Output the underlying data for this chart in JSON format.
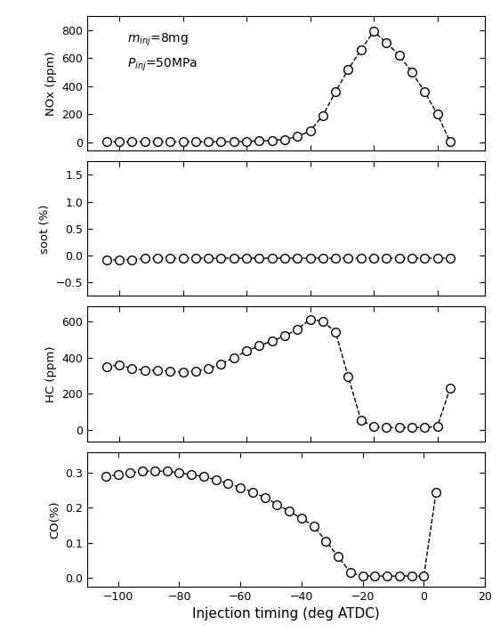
{
  "x_label": "Injection timing (deg ATDC)",
  "nox_x": [
    -104,
    -100,
    -96,
    -92,
    -88,
    -84,
    -80,
    -76,
    -72,
    -68,
    -64,
    -60,
    -56,
    -52,
    -48,
    -44,
    -40,
    -36,
    -32,
    -28,
    -24,
    -20,
    -16,
    -12,
    -8,
    -4,
    0,
    4
  ],
  "nox_y": [
    3,
    3,
    3,
    3,
    3,
    3,
    3,
    3,
    3,
    3,
    3,
    5,
    8,
    12,
    20,
    40,
    80,
    190,
    360,
    520,
    660,
    790,
    710,
    620,
    500,
    360,
    200,
    5
  ],
  "soot_x": [
    -104,
    -100,
    -96,
    -92,
    -88,
    -84,
    -80,
    -76,
    -72,
    -68,
    -64,
    -60,
    -56,
    -52,
    -48,
    -44,
    -40,
    -36,
    -32,
    -28,
    -24,
    -20,
    -16,
    -12,
    -8,
    -4,
    0,
    4
  ],
  "soot_y": [
    -0.08,
    -0.08,
    -0.08,
    -0.05,
    -0.05,
    -0.05,
    -0.05,
    -0.05,
    -0.05,
    -0.05,
    -0.05,
    -0.05,
    -0.05,
    -0.05,
    -0.05,
    -0.05,
    -0.05,
    -0.05,
    -0.05,
    -0.05,
    -0.05,
    -0.05,
    -0.05,
    -0.05,
    -0.05,
    -0.05,
    -0.05,
    -0.05
  ],
  "hc_x": [
    -104,
    -100,
    -96,
    -92,
    -88,
    -84,
    -80,
    -76,
    -72,
    -68,
    -64,
    -60,
    -56,
    -52,
    -48,
    -44,
    -40,
    -36,
    -32,
    -28,
    -24,
    -20,
    -16,
    -12,
    -8,
    -4,
    0,
    4
  ],
  "hc_y": [
    350,
    360,
    340,
    330,
    330,
    325,
    320,
    325,
    340,
    365,
    400,
    435,
    465,
    490,
    520,
    555,
    610,
    600,
    540,
    295,
    55,
    20,
    15,
    15,
    15,
    15,
    20,
    230
  ],
  "co_x": [
    -104,
    -100,
    -96,
    -92,
    -88,
    -84,
    -80,
    -76,
    -72,
    -68,
    -64,
    -60,
    -56,
    -52,
    -48,
    -44,
    -40,
    -36,
    -32,
    -28,
    -24,
    -20,
    -16,
    -12,
    -8,
    -4,
    0,
    4
  ],
  "co_y": [
    0.29,
    0.295,
    0.3,
    0.305,
    0.305,
    0.305,
    0.3,
    0.295,
    0.29,
    0.28,
    0.27,
    0.258,
    0.245,
    0.23,
    0.21,
    0.19,
    0.17,
    0.148,
    0.105,
    0.06,
    0.015,
    0.005,
    0.005,
    0.005,
    0.005,
    0.005,
    0.005,
    0.245
  ],
  "xlim": [
    -110,
    15
  ],
  "xticks": [
    -100,
    -80,
    -60,
    -40,
    -20,
    0,
    20
  ],
  "nox_ylim": [
    -60,
    900
  ],
  "nox_yticks": [
    0,
    200,
    400,
    600,
    800
  ],
  "nox_ylabel": "NOx (ppm)",
  "soot_ylim": [
    -0.75,
    1.75
  ],
  "soot_yticks": [
    -0.5,
    0.0,
    0.5,
    1.0,
    1.5
  ],
  "soot_ylabel": "soot (%)",
  "hc_ylim": [
    -60,
    680
  ],
  "hc_yticks": [
    0,
    200,
    400,
    600
  ],
  "hc_ylabel": "HC (ppm)",
  "co_ylim": [
    -0.025,
    0.36
  ],
  "co_yticks": [
    0.0,
    0.1,
    0.2,
    0.3
  ],
  "co_ylabel": "CO(%)",
  "marker": "o",
  "markersize": 7,
  "markerfacecolor": "white",
  "markeredgecolor": "black",
  "markeredgewidth": 1.0,
  "linestyle": "--",
  "linecolor": "black",
  "linewidth": 1.0,
  "ann1": "m",
  "ann1_sub": "inj",
  "ann1_val": "=8mg",
  "ann2": "P",
  "ann2_sub": "inj",
  "ann2_val": "=50MPa"
}
